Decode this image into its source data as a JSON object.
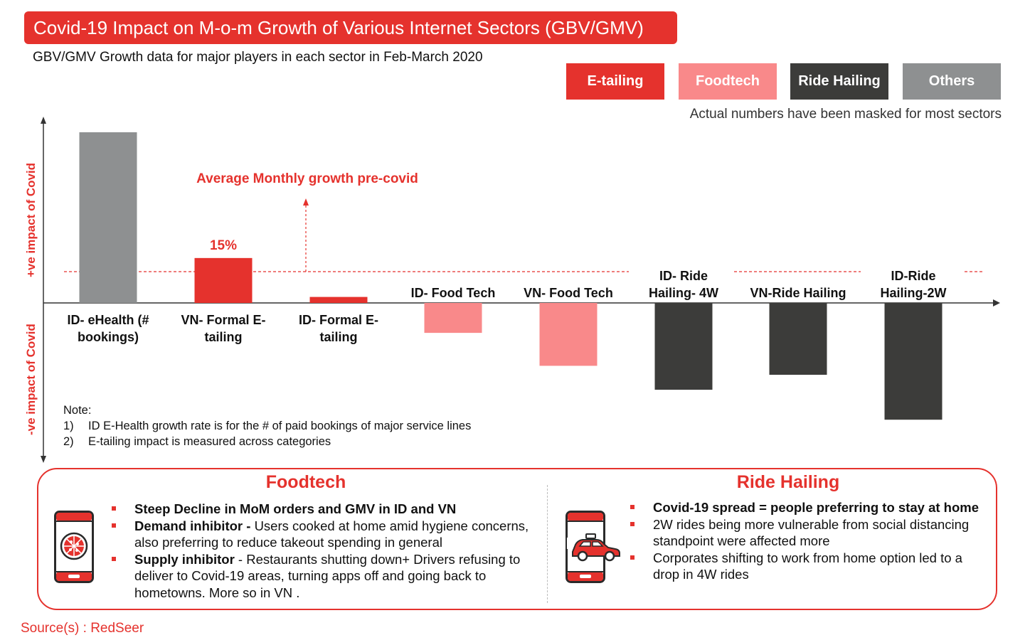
{
  "header": {
    "title": "Covid-19 Impact on M-o-m Growth of Various Internet Sectors (GBV/GMV)",
    "subtitle": "GBV/GMV Growth data for major players in each sector in Feb-March 2020"
  },
  "legend": [
    {
      "label": "E-tailing",
      "color": "#e5322d"
    },
    {
      "label": "Foodtech",
      "color": "#f9898a"
    },
    {
      "label": "Ride Hailing",
      "color": "#3c3c3a"
    },
    {
      "label": "Others",
      "color": "#8e9091"
    }
  ],
  "masked_note": "Actual numbers have been masked for most sectors",
  "axis_labels": {
    "positive": "+ve impact of Covid",
    "negative": "-ve impact of Covid"
  },
  "avg_label": "Average Monthly growth pre-covid",
  "chart_data": {
    "type": "bar",
    "title": "Covid-19 Impact on M-o-m Growth of Various Internet Sectors (GBV/GMV)",
    "categories": [
      "ID- eHealth (# bookings)",
      "VN- Formal E-tailing",
      "ID- Formal E-tailing",
      "ID- Food Tech",
      "VN- Food Tech",
      "ID- Ride Hailing- 4W",
      "VN-Ride Hailing",
      "ID-Ride Hailing-2W"
    ],
    "values": [
      57,
      15,
      2,
      -10,
      -21,
      -29,
      -24,
      -39
    ],
    "sectors": [
      "Others",
      "E-tailing",
      "E-tailing",
      "Foodtech",
      "Foodtech",
      "Ride Hailing",
      "Ride Hailing",
      "Ride Hailing"
    ],
    "data_labels": [
      "",
      "15%",
      "",
      "",
      "",
      "",
      "",
      ""
    ],
    "avg_pre_covid_reference": 10,
    "grid": false,
    "legend_position": "top-right",
    "ylim": [
      -53,
      62
    ]
  },
  "notes": {
    "heading": "Note:",
    "items": [
      {
        "num": "1)",
        "text": "ID E-Health growth rate is for the # of paid bookings of major service lines"
      },
      {
        "num": "2)",
        "text": "E-tailing impact is measured across categories"
      }
    ]
  },
  "foodtech": {
    "title": "Foodtech",
    "icon": "pizza-phone-icon",
    "bullets": [
      {
        "bold": "Steep Decline in MoM orders and GMV in ID and VN",
        "text": ""
      },
      {
        "bold": "Demand inhibitor - ",
        "text": " Users cooked at home amid hygiene concerns, also preferring to reduce takeout spending in general"
      },
      {
        "bold": "Supply inhibitor",
        "text": " - Restaurants shutting down+ Drivers refusing to deliver to Covid-19 areas, turning apps off and going back to hometowns. More so in VN ."
      }
    ]
  },
  "ridehailing": {
    "title": "Ride Hailing",
    "icon": "car-phone-icon",
    "bullets": [
      {
        "bold": "Covid-19 spread = people preferring to stay at home",
        "text": ""
      },
      {
        "bold": "",
        "text": "2W rides being more vulnerable from social distancing standpoint were affected more"
      },
      {
        "bold": "",
        "text": "Corporates shifting to work from home option led to a drop in 4W rides"
      }
    ]
  },
  "source": "Source(s) : RedSeer"
}
